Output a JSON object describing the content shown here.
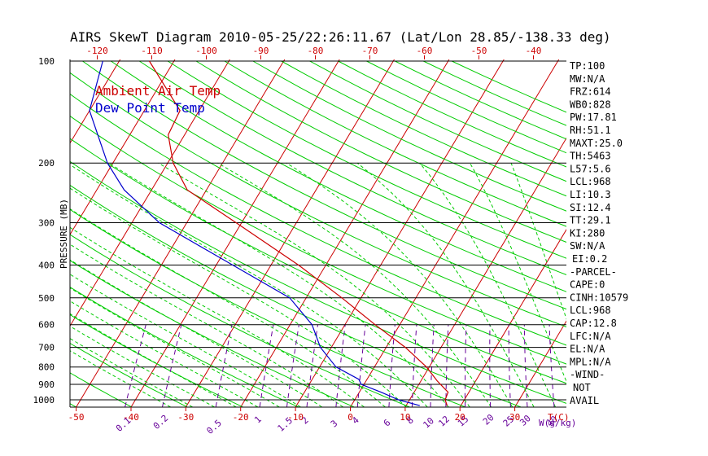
{
  "chart_data": {
    "type": "line",
    "title": "AIRS SkewT Diagram 2010-05-25/22:26:11.67 (Lat/Lon 28.85/-138.33 deg)",
    "ylabel": "PRESSURE (MB)",
    "y_scale": "log",
    "ylim": [
      1040,
      100
    ],
    "xlim_at_base": [
      -53,
      29
    ],
    "pressure_ticks": [
      {
        "p": 100,
        "label": "100"
      },
      {
        "p": 200,
        "label": "200"
      },
      {
        "p": 300,
        "label": "300"
      },
      {
        "p": 400,
        "label": "400"
      },
      {
        "p": 500,
        "label": "500"
      },
      {
        "p": 600,
        "label": "600"
      },
      {
        "p": 700,
        "label": "700"
      },
      {
        "p": 800,
        "label": "800"
      },
      {
        "p": 900,
        "label": "900"
      },
      {
        "p": 1000,
        "label": "1000"
      }
    ],
    "bottom_temp_ticks": [
      "-50",
      "-40",
      "-30",
      "-20",
      "-10",
      "0",
      "10",
      "20",
      "30"
    ],
    "top_temp_ticks": [
      "-120",
      "-110",
      "-100",
      "-90",
      "-80",
      "-70",
      "-60",
      "-50",
      "-40"
    ],
    "mixing_ratio_labels": [
      "0.1",
      "0.2",
      "0.5",
      "1",
      "1.5",
      "2",
      "3",
      "4",
      "6",
      "8",
      "10",
      "12",
      "15",
      "20",
      "25",
      "30",
      "40"
    ],
    "temp_unit_label": "T(C)",
    "mixing_unit_label": "W(g/kg)",
    "colors": {
      "air_temp": "#cc0000",
      "dew_point": "#0000cc",
      "isotherm": "#cc0000",
      "dry_adiabat": "#00cc00",
      "moist_adiabat": "#00cc00",
      "mixing_ratio": "#660099",
      "isobar": "#000000",
      "temp_tick": "#cc0000"
    },
    "series": [
      {
        "name": "Ambient Air Temp",
        "points": [
          {
            "p": 1040,
            "t": 17.5
          },
          {
            "p": 1000,
            "t": 16.5
          },
          {
            "p": 950,
            "t": 16.2
          },
          {
            "p": 880,
            "t": 13.0
          },
          {
            "p": 800,
            "t": 9.5
          },
          {
            "p": 700,
            "t": 3.5
          },
          {
            "p": 600,
            "t": -4.5
          },
          {
            "p": 500,
            "t": -13.5
          },
          {
            "p": 400,
            "t": -25.0
          },
          {
            "p": 300,
            "t": -41.0
          },
          {
            "p": 240,
            "t": -53.5
          },
          {
            "p": 200,
            "t": -59.0
          },
          {
            "p": 165,
            "t": -63.0
          },
          {
            "p": 140,
            "t": -63.5
          },
          {
            "p": 100,
            "t": -74.5
          }
        ]
      },
      {
        "name": "Dew Point Temp",
        "points": [
          {
            "p": 1040,
            "t": 12.5
          },
          {
            "p": 1000,
            "t": 8.0
          },
          {
            "p": 950,
            "t": 4.0
          },
          {
            "p": 900,
            "t": -0.5
          },
          {
            "p": 870,
            "t": -1.5
          },
          {
            "p": 800,
            "t": -7.0
          },
          {
            "p": 700,
            "t": -12.0
          },
          {
            "p": 600,
            "t": -16.0
          },
          {
            "p": 500,
            "t": -23.0
          },
          {
            "p": 400,
            "t": -37.0
          },
          {
            "p": 300,
            "t": -55.0
          },
          {
            "p": 240,
            "t": -65.0
          },
          {
            "p": 200,
            "t": -71.0
          },
          {
            "p": 140,
            "t": -80.0
          },
          {
            "p": 100,
            "t": -83.0
          }
        ]
      }
    ],
    "legend": {
      "position": "top-left",
      "entries": [
        {
          "label": "Ambient Air Temp",
          "color": "#cc0000"
        },
        {
          "label": "Dew Point Temp",
          "color": "#0000cc"
        }
      ]
    },
    "indices": [
      "TP:100",
      "MW:N/A",
      "FRZ:614",
      "WB0:828",
      "PW:17.81",
      "RH:51.1",
      "MAXT:25.0",
      "TH:5463",
      "L57:5.6",
      "LCL:968",
      "LI:10.3",
      "SI:12.4",
      "TT:29.1",
      "KI:280",
      "SW:N/A",
      "EI:0.2",
      "-PARCEL-",
      "CAPE:0",
      "CINH:10579",
      "LCL:968",
      "CAP:12.8",
      "LFC:N/A",
      "EL:N/A",
      "MPL:N/A",
      "-WIND-",
      "NOT",
      "AVAIL"
    ]
  }
}
